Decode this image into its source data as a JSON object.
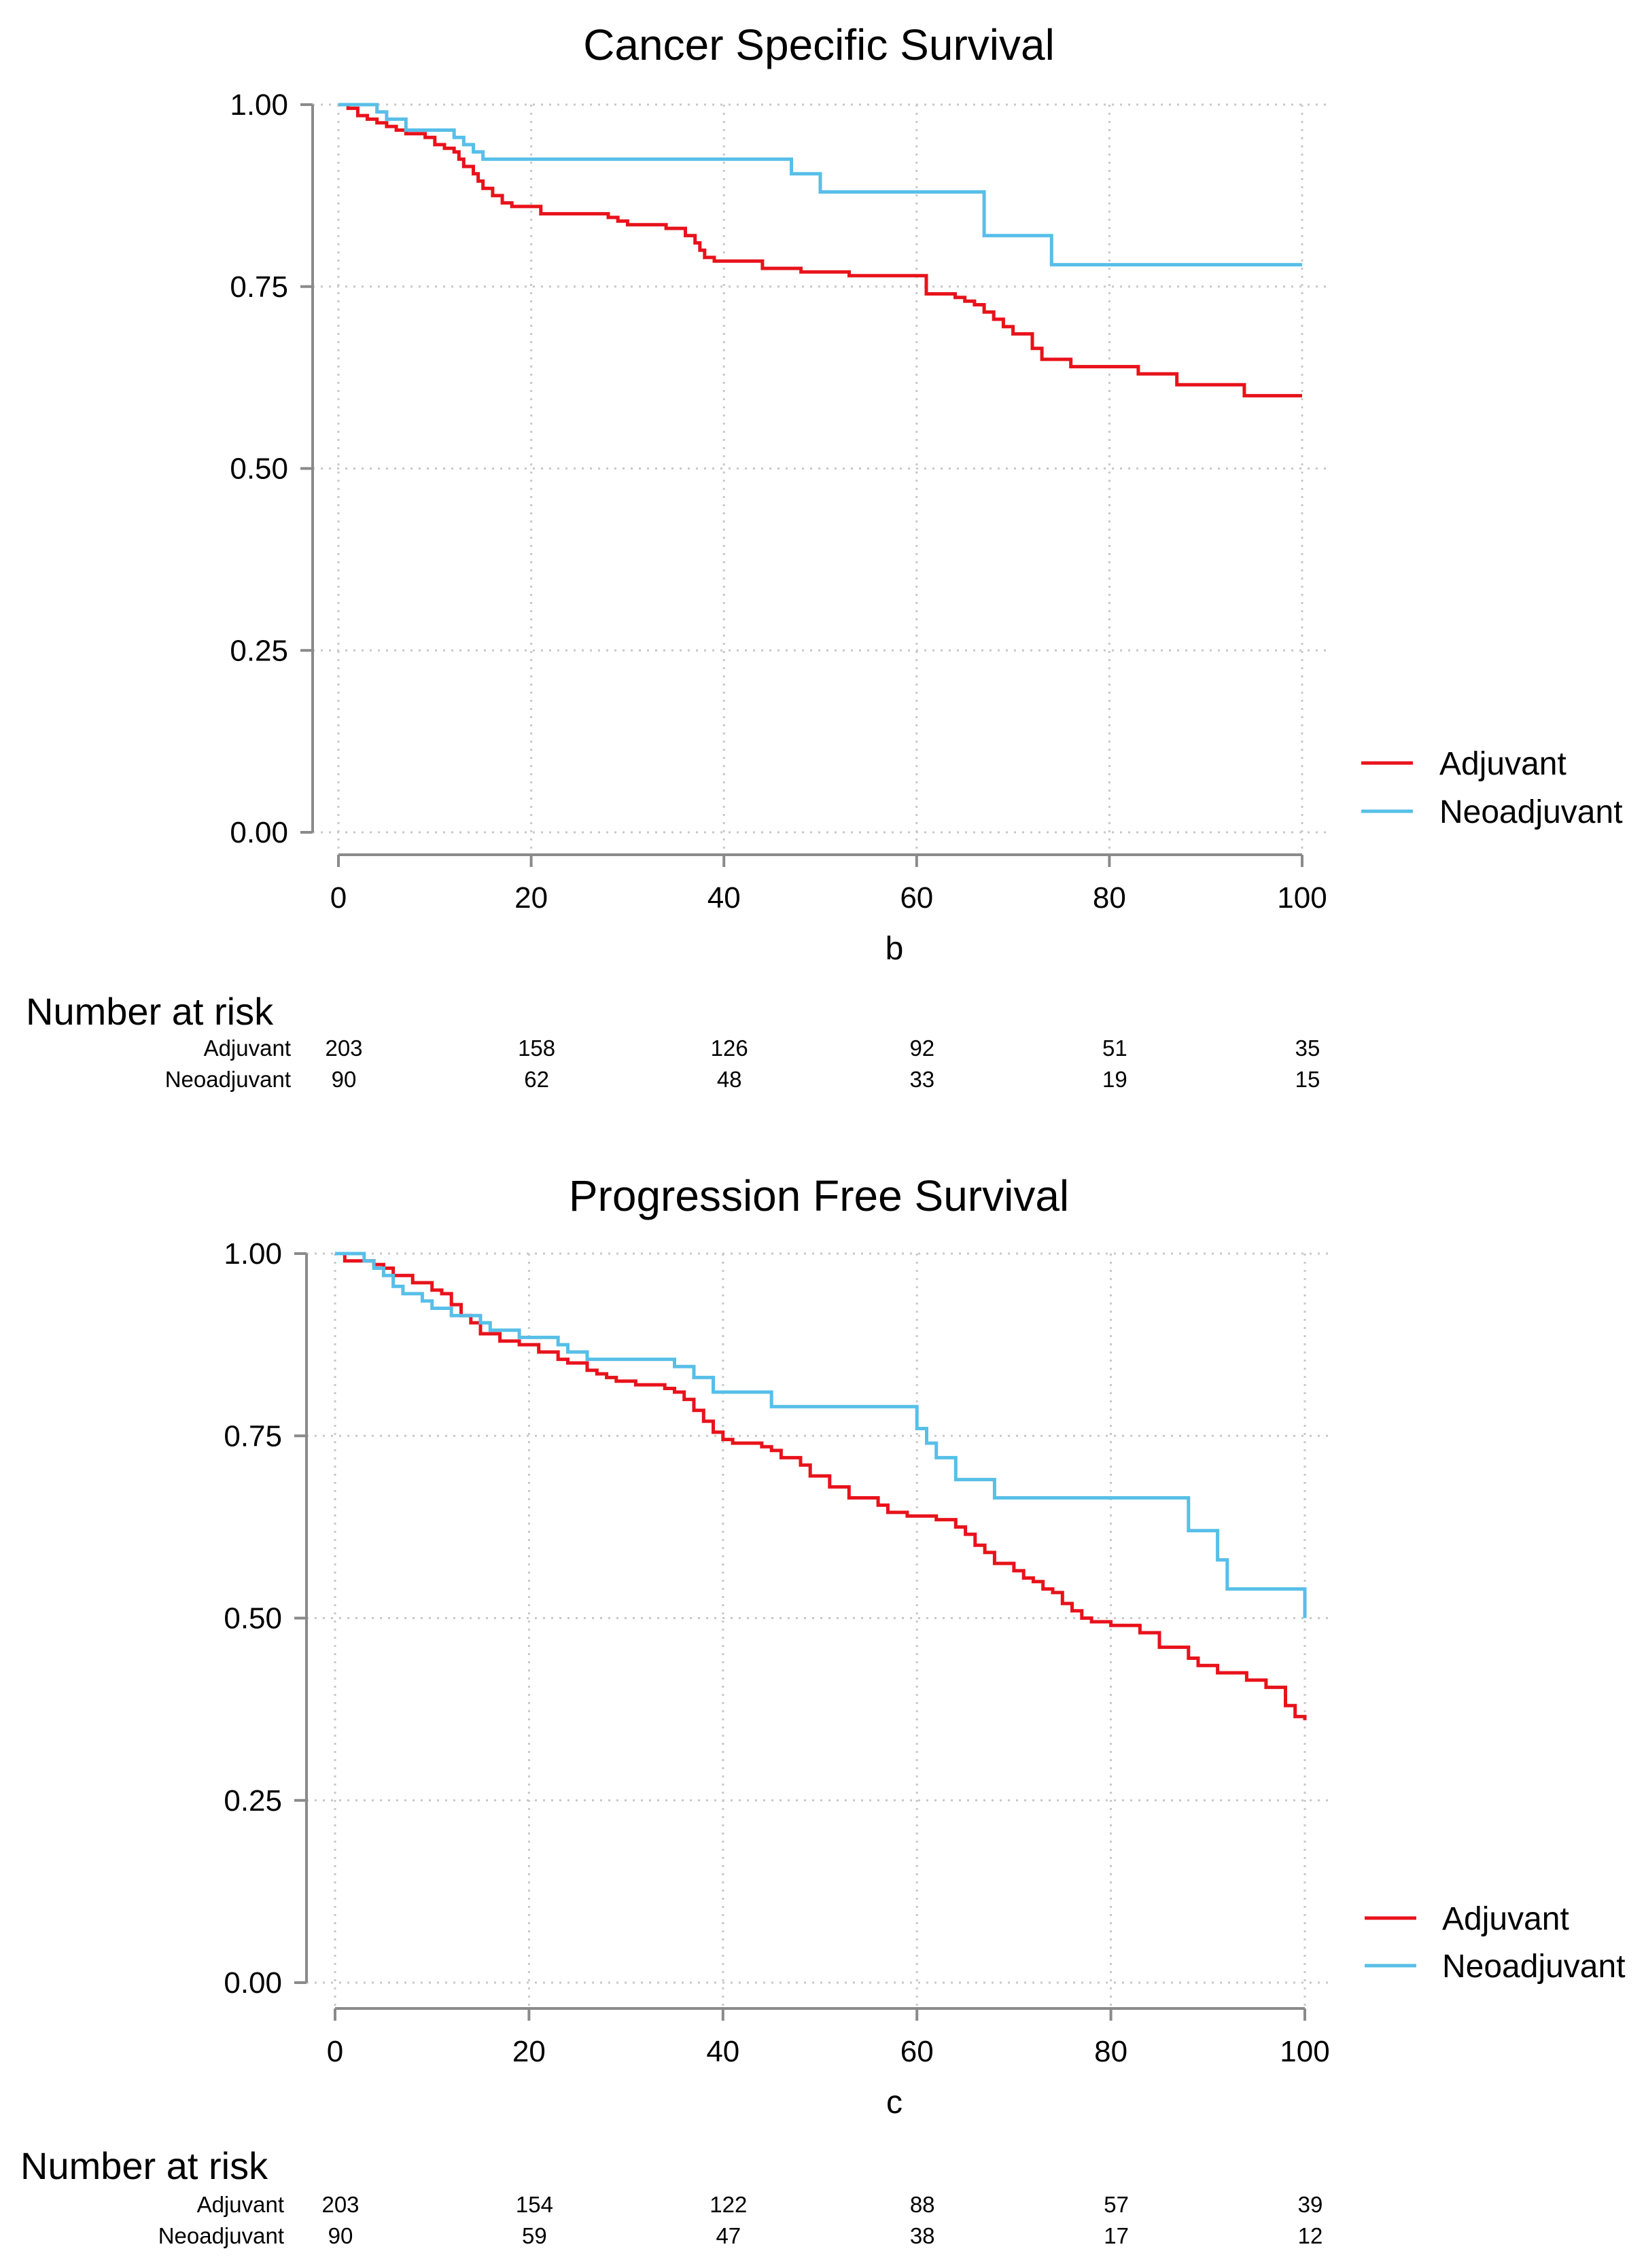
{
  "colors": {
    "adjuvant": "#e8121b",
    "neoadjuvant": "#57bfe8"
  },
  "chart_data": [
    {
      "type": "line",
      "title": "Cancer Specific Survival",
      "xlabel": "b",
      "ylabel": "",
      "xlim": [
        0,
        100
      ],
      "ylim": [
        0,
        1
      ],
      "x_ticks": [
        "0",
        "20",
        "40",
        "60",
        "80",
        "100"
      ],
      "y_ticks": [
        "0.00",
        "0.25",
        "0.50",
        "0.75",
        "1.00"
      ],
      "grid": true,
      "legend": {
        "position": "right",
        "entries": [
          "Adjuvant",
          "Neoadjuvant"
        ]
      },
      "series": [
        {
          "name": "Adjuvant",
          "color": "#e8121b",
          "points": [
            [
              0,
              1.0
            ],
            [
              1,
              0.995
            ],
            [
              2,
              0.985
            ],
            [
              3,
              0.98
            ],
            [
              4,
              0.975
            ],
            [
              5,
              0.97
            ],
            [
              6,
              0.965
            ],
            [
              7,
              0.96
            ],
            [
              9,
              0.955
            ],
            [
              10,
              0.945
            ],
            [
              11,
              0.94
            ],
            [
              12,
              0.935
            ],
            [
              12.5,
              0.925
            ],
            [
              13,
              0.915
            ],
            [
              14,
              0.905
            ],
            [
              14.5,
              0.895
            ],
            [
              15,
              0.885
            ],
            [
              16,
              0.875
            ],
            [
              17,
              0.865
            ],
            [
              18,
              0.86
            ],
            [
              21,
              0.85
            ],
            [
              28,
              0.845
            ],
            [
              29,
              0.84
            ],
            [
              30,
              0.835
            ],
            [
              34,
              0.83
            ],
            [
              36,
              0.82
            ],
            [
              37,
              0.81
            ],
            [
              37.5,
              0.8
            ],
            [
              38,
              0.79
            ],
            [
              39,
              0.785
            ],
            [
              44,
              0.775
            ],
            [
              48,
              0.77
            ],
            [
              53,
              0.765
            ],
            [
              61,
              0.74
            ],
            [
              64,
              0.735
            ],
            [
              65,
              0.73
            ],
            [
              66,
              0.725
            ],
            [
              67,
              0.715
            ],
            [
              68,
              0.705
            ],
            [
              69,
              0.695
            ],
            [
              70,
              0.685
            ],
            [
              72,
              0.665
            ],
            [
              73,
              0.65
            ],
            [
              76,
              0.64
            ],
            [
              83,
              0.63
            ],
            [
              87,
              0.615
            ],
            [
              94,
              0.6
            ],
            [
              100,
              0.6
            ]
          ]
        },
        {
          "name": "Neoadjuvant",
          "color": "#57bfe8",
          "points": [
            [
              0,
              1.0
            ],
            [
              4,
              0.99
            ],
            [
              5,
              0.98
            ],
            [
              7,
              0.965
            ],
            [
              12,
              0.955
            ],
            [
              13,
              0.945
            ],
            [
              14,
              0.935
            ],
            [
              15,
              0.925
            ],
            [
              47,
              0.905
            ],
            [
              50,
              0.88
            ],
            [
              67,
              0.82
            ],
            [
              74,
              0.78
            ],
            [
              100,
              0.78
            ]
          ]
        }
      ],
      "number_at_risk": {
        "title": "Number at risk",
        "rows": [
          {
            "label": "Adjuvant",
            "values": [
              "203",
              "158",
              "126",
              "92",
              "51",
              "35"
            ]
          },
          {
            "label": "Neoadjuvant",
            "values": [
              "90",
              "62",
              "48",
              "33",
              "19",
              "15"
            ]
          }
        ]
      }
    },
    {
      "type": "line",
      "title": "Progression Free Survival",
      "xlabel": "c",
      "ylabel": "",
      "xlim": [
        0,
        100
      ],
      "ylim": [
        0,
        1
      ],
      "x_ticks": [
        "0",
        "20",
        "40",
        "60",
        "80",
        "100"
      ],
      "y_ticks": [
        "0.00",
        "0.25",
        "0.50",
        "0.75",
        "1.00"
      ],
      "grid": true,
      "legend": {
        "position": "right",
        "entries": [
          "Adjuvant",
          "Neoadjuvant"
        ]
      },
      "series": [
        {
          "name": "Adjuvant",
          "color": "#e8121b",
          "points": [
            [
              0,
              1.0
            ],
            [
              1,
              0.99
            ],
            [
              4,
              0.985
            ],
            [
              5,
              0.98
            ],
            [
              6,
              0.97
            ],
            [
              8,
              0.96
            ],
            [
              10,
              0.95
            ],
            [
              11,
              0.945
            ],
            [
              12,
              0.93
            ],
            [
              13,
              0.915
            ],
            [
              14,
              0.905
            ],
            [
              15,
              0.89
            ],
            [
              17,
              0.88
            ],
            [
              19,
              0.875
            ],
            [
              21,
              0.865
            ],
            [
              23,
              0.855
            ],
            [
              24,
              0.85
            ],
            [
              26,
              0.84
            ],
            [
              27,
              0.835
            ],
            [
              28,
              0.83
            ],
            [
              29,
              0.825
            ],
            [
              31,
              0.82
            ],
            [
              34,
              0.815
            ],
            [
              35,
              0.81
            ],
            [
              36,
              0.8
            ],
            [
              37,
              0.785
            ],
            [
              38,
              0.77
            ],
            [
              39,
              0.755
            ],
            [
              40,
              0.745
            ],
            [
              41,
              0.74
            ],
            [
              44,
              0.735
            ],
            [
              45,
              0.73
            ],
            [
              46,
              0.72
            ],
            [
              48,
              0.71
            ],
            [
              49,
              0.695
            ],
            [
              51,
              0.68
            ],
            [
              53,
              0.665
            ],
            [
              56,
              0.655
            ],
            [
              57,
              0.645
            ],
            [
              59,
              0.64
            ],
            [
              62,
              0.635
            ],
            [
              64,
              0.625
            ],
            [
              65,
              0.615
            ],
            [
              66,
              0.6
            ],
            [
              67,
              0.59
            ],
            [
              68,
              0.575
            ],
            [
              70,
              0.565
            ],
            [
              71,
              0.555
            ],
            [
              72,
              0.55
            ],
            [
              73,
              0.54
            ],
            [
              74,
              0.535
            ],
            [
              75,
              0.52
            ],
            [
              76,
              0.51
            ],
            [
              77,
              0.5
            ],
            [
              78,
              0.495
            ],
            [
              80,
              0.49
            ],
            [
              83,
              0.48
            ],
            [
              85,
              0.46
            ],
            [
              88,
              0.445
            ],
            [
              89,
              0.435
            ],
            [
              91,
              0.425
            ],
            [
              94,
              0.415
            ],
            [
              96,
              0.405
            ],
            [
              98,
              0.38
            ],
            [
              99,
              0.365
            ],
            [
              100,
              0.36
            ]
          ]
        },
        {
          "name": "Neoadjuvant",
          "color": "#57bfe8",
          "points": [
            [
              0,
              1.0
            ],
            [
              3,
              0.99
            ],
            [
              4,
              0.98
            ],
            [
              5,
              0.97
            ],
            [
              6,
              0.955
            ],
            [
              7,
              0.945
            ],
            [
              9,
              0.935
            ],
            [
              10,
              0.925
            ],
            [
              12,
              0.915
            ],
            [
              15,
              0.905
            ],
            [
              16,
              0.895
            ],
            [
              19,
              0.885
            ],
            [
              23,
              0.875
            ],
            [
              24,
              0.865
            ],
            [
              26,
              0.855
            ],
            [
              35,
              0.845
            ],
            [
              37,
              0.83
            ],
            [
              39,
              0.81
            ],
            [
              45,
              0.79
            ],
            [
              60,
              0.76
            ],
            [
              61,
              0.74
            ],
            [
              62,
              0.72
            ],
            [
              64,
              0.69
            ],
            [
              68,
              0.665
            ],
            [
              88,
              0.62
            ],
            [
              91,
              0.58
            ],
            [
              92,
              0.54
            ],
            [
              100,
              0.5
            ]
          ]
        }
      ],
      "number_at_risk": {
        "title": "Number at risk",
        "rows": [
          {
            "label": "Adjuvant",
            "values": [
              "203",
              "154",
              "122",
              "88",
              "57",
              "39"
            ]
          },
          {
            "label": "Neoadjuvant",
            "values": [
              "90",
              "59",
              "47",
              "38",
              "17",
              "12"
            ]
          }
        ]
      }
    }
  ]
}
